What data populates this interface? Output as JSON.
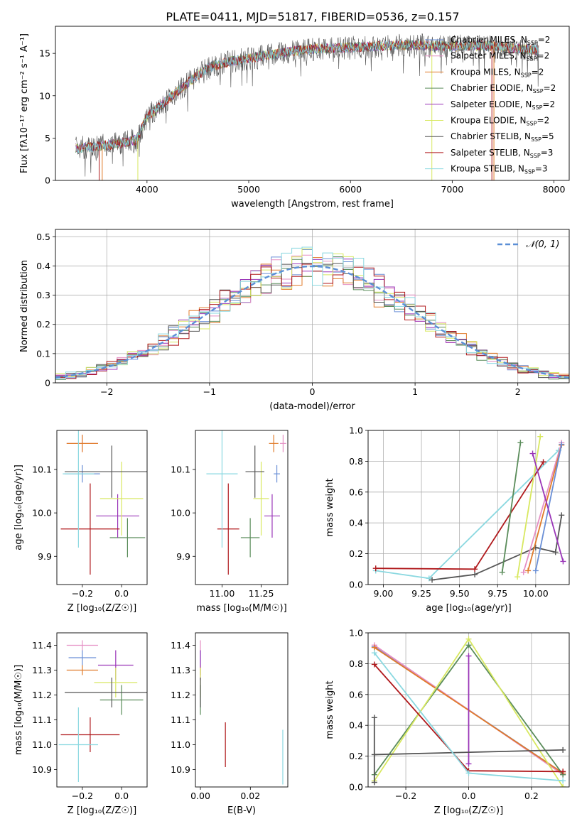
{
  "figure": {
    "title": "PLATE=0411, MJD=51817, FIBERID=0536, z=0.157"
  },
  "colors": {
    "chabrier_miles": "#6a8fd6",
    "salpeter_miles": "#e58fc4",
    "kroupa_miles": "#e07b2a",
    "chabrier_elodie": "#5a8c5a",
    "salpeter_elodie": "#9a35b8",
    "kroupa_elodie": "#d8e860",
    "chabrier_stelib": "#555555",
    "salpeter_stelib": "#b0191c",
    "kroupa_stelib": "#8ad8e0",
    "normal": "#5b8fd6",
    "grid": "#b0b0b0"
  },
  "chart_data": [
    {
      "id": "spectrum",
      "type": "line",
      "xlabel": "wavelength [Angstrom, rest frame]",
      "ylabel": "Flux [fλ10⁻¹⁷ erg cm⁻² s⁻¹ A⁻¹]",
      "xlim": [
        3100,
        8150
      ],
      "ylim": [
        0,
        18.2
      ],
      "xticks": [
        4000,
        5000,
        6000,
        7000,
        8000
      ],
      "yticks": [
        0,
        5,
        10,
        15
      ],
      "grid": false,
      "legend": "right",
      "data_envelope": {
        "x": [
          3300,
          3500,
          3700,
          3900,
          4000,
          4200,
          4400,
          4600,
          4800,
          5000,
          5200,
          5400,
          5600,
          5800,
          6000,
          6200,
          6400,
          6600,
          6800,
          7000,
          7200,
          7400,
          7600,
          7800
        ],
        "y": [
          3.8,
          4.0,
          4.3,
          4.8,
          7.5,
          9.5,
          11.5,
          13.3,
          14.0,
          14.4,
          14.8,
          15.2,
          15.5,
          15.6,
          15.7,
          15.8,
          15.9,
          16.0,
          15.9,
          15.8,
          15.9,
          15.9,
          15.6,
          15.4
        ]
      },
      "series": [
        {
          "name": "Chabrier MILES, N_SSP=2",
          "color_key": "chabrier_miles"
        },
        {
          "name": "Salpeter MILES, N_SSP=2",
          "color_key": "salpeter_miles"
        },
        {
          "name": "Kroupa MILES, N_SSP=2",
          "color_key": "kroupa_miles"
        },
        {
          "name": "Chabrier ELODIE, N_SSP=2",
          "color_key": "chabrier_elodie"
        },
        {
          "name": "Salpeter ELODIE, N_SSP=2",
          "color_key": "salpeter_elodie"
        },
        {
          "name": "Kroupa ELODIE, N_SSP=2",
          "color_key": "kroupa_elodie"
        },
        {
          "name": "Chabrier STELIB, N_SSP=5",
          "color_key": "chabrier_stelib"
        },
        {
          "name": "Salpeter STELIB, N_SSP=3",
          "color_key": "salpeter_stelib"
        },
        {
          "name": "Kroupa STELIB, N_SSP=3",
          "color_key": "kroupa_stelib"
        }
      ]
    },
    {
      "id": "residuals",
      "type": "histogram",
      "xlabel": "(data-model)/error",
      "ylabel": "Normed distribution",
      "xlim": [
        -2.5,
        2.5
      ],
      "ylim": [
        0,
        0.525
      ],
      "xticks": [
        -2,
        -1,
        0,
        1,
        2
      ],
      "yticks": [
        0.0,
        0.1,
        0.2,
        0.3,
        0.4,
        0.5
      ],
      "grid": true,
      "legend": "top-right",
      "reference_curve": {
        "name": "𝒩(0, 1)",
        "mean": 0,
        "sigma": 1
      },
      "bin_width": 0.1
    },
    {
      "id": "age_vs_Z",
      "type": "errorbar",
      "xlabel": "Z [log₁₀(Z/Z☉)]",
      "ylabel": "age  [log₁₀(age/yr)]",
      "xlim": [
        -0.33,
        0.13
      ],
      "ylim": [
        9.835,
        10.19
      ],
      "xticks": [
        -0.2,
        0.0
      ],
      "yticks": [
        9.9,
        10.0,
        10.1
      ],
      "grid": false,
      "points": [
        {
          "series": "chabrier_miles",
          "x": -0.2,
          "xerr": 0.09,
          "y": 10.09,
          "yerr": 0.02
        },
        {
          "series": "salpeter_miles",
          "x": -0.2,
          "xerr": 0.08,
          "y": 10.16,
          "yerr": 0.02
        },
        {
          "series": "kroupa_miles",
          "x": -0.2,
          "xerr": 0.08,
          "y": 10.16,
          "yerr": 0.02
        },
        {
          "series": "chabrier_elodie",
          "x": 0.03,
          "xerr": 0.09,
          "y": 9.943,
          "yerr": 0.045
        },
        {
          "series": "salpeter_elodie",
          "x": -0.02,
          "xerr": 0.11,
          "y": 9.993,
          "yerr": 0.05
        },
        {
          "series": "kroupa_elodie",
          "x": 0.0,
          "xerr": 0.11,
          "y": 10.033,
          "yerr": 0.085
        },
        {
          "series": "chabrier_stelib",
          "x": -0.05,
          "xerr": 0.24,
          "y": 10.095,
          "yerr": 0.06
        },
        {
          "series": "salpeter_stelib",
          "x": -0.16,
          "xerr": 0.15,
          "y": 9.963,
          "yerr": 0.105
        },
        {
          "series": "kroupa_stelib",
          "x": -0.22,
          "xerr": 0.08,
          "y": 10.09,
          "yerr": 0.17
        }
      ]
    },
    {
      "id": "age_vs_mass",
      "type": "errorbar",
      "xlabel": "mass [log₁₀(M/M☉)]",
      "ylabel": "",
      "xlim": [
        10.83,
        11.42
      ],
      "ylim": [
        9.835,
        10.19
      ],
      "xticks": [
        11.0,
        11.25
      ],
      "yticks": [
        9.9,
        10.0,
        10.1
      ],
      "grid": false,
      "points": [
        {
          "series": "chabrier_miles",
          "x": 11.35,
          "xerr": 0.02,
          "y": 10.09,
          "yerr": 0.02
        },
        {
          "series": "salpeter_miles",
          "x": 11.39,
          "xerr": 0.02,
          "y": 10.16,
          "yerr": 0.02
        },
        {
          "series": "kroupa_miles",
          "x": 11.33,
          "xerr": 0.03,
          "y": 10.16,
          "yerr": 0.02
        },
        {
          "series": "chabrier_elodie",
          "x": 11.18,
          "xerr": 0.06,
          "y": 9.943,
          "yerr": 0.045
        },
        {
          "series": "salpeter_elodie",
          "x": 11.32,
          "xerr": 0.05,
          "y": 9.993,
          "yerr": 0.05
        },
        {
          "series": "kroupa_elodie",
          "x": 11.25,
          "xerr": 0.05,
          "y": 10.033,
          "yerr": 0.085
        },
        {
          "series": "chabrier_stelib",
          "x": 11.21,
          "xerr": 0.06,
          "y": 10.095,
          "yerr": 0.06
        },
        {
          "series": "salpeter_stelib",
          "x": 11.04,
          "xerr": 0.07,
          "y": 9.963,
          "yerr": 0.105
        },
        {
          "series": "kroupa_stelib",
          "x": 11.0,
          "xerr": 0.1,
          "y": 10.09,
          "yerr": 0.17
        }
      ]
    },
    {
      "id": "mw_vs_age",
      "type": "line",
      "xlabel": "age  [log₁₀(age/yr)]",
      "ylabel": "mass weight",
      "xlim": [
        8.9,
        10.22
      ],
      "ylim": [
        0,
        1
      ],
      "xticks": [
        9.0,
        9.25,
        9.5,
        9.75,
        10.0
      ],
      "yticks": [
        0.0,
        0.2,
        0.4,
        0.6,
        0.8,
        1.0
      ],
      "grid": true,
      "series": [
        {
          "series": "kroupa_stelib",
          "x": [
            8.95,
            9.3,
            10.15
          ],
          "y": [
            0.09,
            0.04,
            0.87
          ]
        },
        {
          "series": "salpeter_stelib",
          "x": [
            8.95,
            9.6,
            10.05
          ],
          "y": [
            0.105,
            0.1,
            0.795
          ]
        },
        {
          "series": "chabrier_stelib",
          "x": [
            9.32,
            9.6,
            10.0,
            10.13,
            10.17
          ],
          "y": [
            0.03,
            0.065,
            0.24,
            0.21,
            0.45
          ]
        },
        {
          "series": "chabrier_elodie",
          "x": [
            9.78,
            9.9
          ],
          "y": [
            0.08,
            0.92
          ]
        },
        {
          "series": "kroupa_elodie",
          "x": [
            9.88,
            10.03
          ],
          "y": [
            0.05,
            0.96
          ]
        },
        {
          "series": "salpeter_miles",
          "x": [
            9.92,
            10.17
          ],
          "y": [
            0.08,
            0.92
          ]
        },
        {
          "series": "kroupa_miles",
          "x": [
            9.95,
            10.17
          ],
          "y": [
            0.09,
            0.905
          ]
        },
        {
          "series": "chabrier_miles",
          "x": [
            10.0,
            10.17
          ],
          "y": [
            0.09,
            0.91
          ]
        },
        {
          "series": "salpeter_elodie",
          "x": [
            9.98,
            10.18
          ],
          "y": [
            0.85,
            0.15
          ]
        }
      ]
    },
    {
      "id": "mass_vs_Z",
      "type": "errorbar",
      "xlabel": "Z [log₁₀(Z/Z☉)]",
      "ylabel": "mass [log₁₀(M/M☉)]",
      "xlim": [
        -0.33,
        0.13
      ],
      "ylim": [
        10.83,
        11.45
      ],
      "xticks": [
        -0.2,
        0.0
      ],
      "yticks": [
        10.9,
        11.0,
        11.1,
        11.2,
        11.3,
        11.4
      ],
      "grid": false,
      "points": [
        {
          "series": "salpeter_miles",
          "x": -0.2,
          "xerr": 0.08,
          "y": 11.4,
          "yerr": 0.02
        },
        {
          "series": "chabrier_miles",
          "x": -0.2,
          "xerr": 0.07,
          "y": 11.35,
          "yerr": 0.03
        },
        {
          "series": "kroupa_miles",
          "x": -0.2,
          "xerr": 0.08,
          "y": 11.3,
          "yerr": 0.02
        },
        {
          "series": "salpeter_elodie",
          "x": -0.03,
          "xerr": 0.09,
          "y": 11.32,
          "yerr": 0.06
        },
        {
          "series": "kroupa_elodie",
          "x": -0.03,
          "xerr": 0.11,
          "y": 11.25,
          "yerr": 0.06
        },
        {
          "series": "chabrier_elodie",
          "x": 0.0,
          "xerr": 0.11,
          "y": 11.18,
          "yerr": 0.06
        },
        {
          "series": "chabrier_stelib",
          "x": -0.05,
          "xerr": 0.24,
          "y": 11.21,
          "yerr": 0.06
        },
        {
          "series": "salpeter_stelib",
          "x": -0.16,
          "xerr": 0.15,
          "y": 11.04,
          "yerr": 0.07
        },
        {
          "series": "kroupa_stelib",
          "x": -0.22,
          "xerr": 0.1,
          "y": 11.0,
          "yerr": 0.15
        }
      ]
    },
    {
      "id": "mass_vs_ebv",
      "type": "errorbar",
      "xlabel": "E(B-V)",
      "ylabel": "",
      "xlim": [
        -0.002,
        0.035
      ],
      "ylim": [
        10.83,
        11.45
      ],
      "xticks": [
        0.0,
        0.02
      ],
      "yticks": [
        10.9,
        11.0,
        11.1,
        11.2,
        11.3,
        11.4
      ],
      "grid": false,
      "points": [
        {
          "series": "salpeter_miles",
          "x": 0.0,
          "xerr": 0.0,
          "y": 11.4,
          "yerr": 0.02
        },
        {
          "series": "chabrier_miles",
          "x": 0.0,
          "xerr": 0.0,
          "y": 11.35,
          "yerr": 0.03
        },
        {
          "series": "kroupa_miles",
          "x": 0.0,
          "xerr": 0.0,
          "y": 11.3,
          "yerr": 0.02
        },
        {
          "series": "salpeter_elodie",
          "x": 0.0,
          "xerr": 0.0,
          "y": 11.32,
          "yerr": 0.06
        },
        {
          "series": "kroupa_elodie",
          "x": 0.0,
          "xerr": 0.0,
          "y": 11.25,
          "yerr": 0.06
        },
        {
          "series": "chabrier_elodie",
          "x": 0.0,
          "xerr": 0.0,
          "y": 11.18,
          "yerr": 0.06
        },
        {
          "series": "chabrier_stelib",
          "x": 0.0,
          "xerr": 0.0,
          "y": 11.21,
          "yerr": 0.06
        },
        {
          "series": "salpeter_stelib",
          "x": 0.01,
          "xerr": 0.0,
          "y": 11.0,
          "yerr": 0.09
        },
        {
          "series": "kroupa_stelib",
          "x": 0.033,
          "xerr": 0.0,
          "y": 10.95,
          "yerr": 0.11
        }
      ]
    },
    {
      "id": "mw_vs_Z",
      "type": "line",
      "xlabel": "Z [log₁₀(Z/Z☉)]",
      "ylabel": "mass weight",
      "xlim": [
        -0.32,
        0.32
      ],
      "ylim": [
        0,
        1
      ],
      "xticks": [
        -0.2,
        0.0,
        0.2
      ],
      "yticks": [
        0.0,
        0.2,
        0.4,
        0.6,
        0.8,
        1.0
      ],
      "grid": true,
      "series": [
        {
          "series": "chabrier_miles",
          "x": [
            -0.3,
            0.3
          ],
          "y": [
            0.91,
            0.09
          ]
        },
        {
          "series": "salpeter_miles",
          "x": [
            -0.3,
            0.3
          ],
          "y": [
            0.92,
            0.08
          ]
        },
        {
          "series": "kroupa_miles",
          "x": [
            -0.3,
            0.3
          ],
          "y": [
            0.905,
            0.09
          ]
        },
        {
          "series": "chabrier_elodie",
          "x": [
            -0.3,
            0.0,
            0.3
          ],
          "y": [
            0.08,
            0.92,
            0.08
          ]
        },
        {
          "series": "salpeter_elodie",
          "x": [
            0.0,
            0.0
          ],
          "y": [
            0.15,
            0.85
          ]
        },
        {
          "series": "kroupa_elodie",
          "x": [
            -0.3,
            0.0,
            0.3
          ],
          "y": [
            0.04,
            0.96,
            0.0
          ]
        },
        {
          "series": "chabrier_stelib",
          "x": [
            -0.3,
            -0.3,
            -0.3,
            0.3
          ],
          "y": [
            0.03,
            0.45,
            0.21,
            0.24
          ]
        },
        {
          "series": "salpeter_stelib",
          "x": [
            -0.3,
            0.0,
            0.3
          ],
          "y": [
            0.795,
            0.105,
            0.1
          ]
        },
        {
          "series": "kroupa_stelib",
          "x": [
            -0.3,
            0.0,
            0.3
          ],
          "y": [
            0.87,
            0.09,
            0.04
          ]
        }
      ]
    }
  ]
}
